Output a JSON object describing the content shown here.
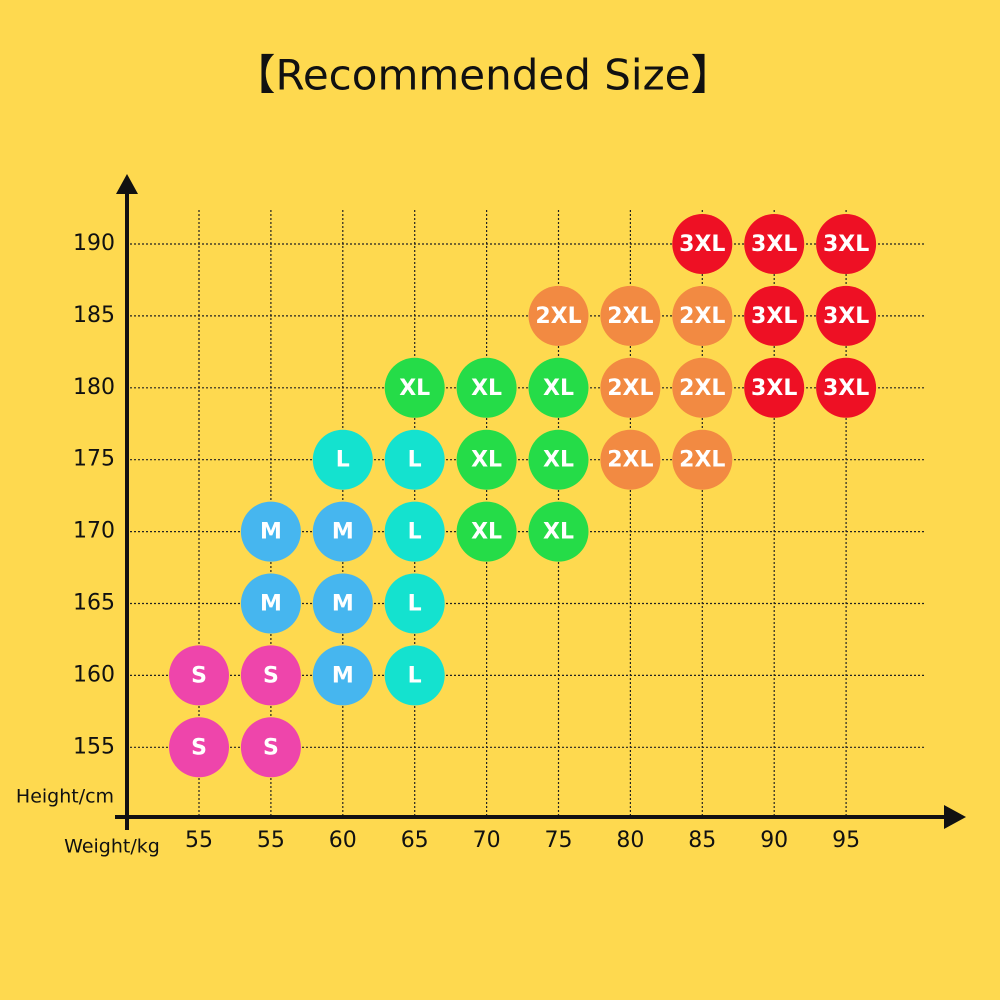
{
  "chart_data": {
    "type": "size-grid",
    "title": "【Recommended Size】",
    "x_label": "Weight/kg",
    "y_label": "Height/cm",
    "x_categories": [
      55,
      55,
      60,
      65,
      70,
      75,
      80,
      85,
      90,
      95
    ],
    "colors": {
      "S": "#ee45ab",
      "M": "#46b6ef",
      "L": "#14e2cf",
      "XL": "#25dc48",
      "2XL": "#f28a42",
      "3XL": "#ee1024"
    },
    "rows": [
      {
        "height": 190,
        "cells": [
          null,
          null,
          null,
          null,
          null,
          null,
          null,
          "3XL",
          "3XL",
          "3XL"
        ]
      },
      {
        "height": 185,
        "cells": [
          null,
          null,
          null,
          null,
          null,
          "2XL",
          "2XL",
          "2XL",
          "3XL",
          "3XL"
        ]
      },
      {
        "height": 180,
        "cells": [
          null,
          null,
          null,
          "XL",
          "XL",
          "XL",
          "2XL",
          "2XL",
          "3XL",
          "3XL"
        ]
      },
      {
        "height": 175,
        "cells": [
          null,
          null,
          "L",
          "L",
          "XL",
          "XL",
          "2XL",
          "2XL",
          null,
          null
        ]
      },
      {
        "height": 170,
        "cells": [
          null,
          "M",
          "M",
          "L",
          "XL",
          "XL",
          null,
          null,
          null,
          null
        ]
      },
      {
        "height": 165,
        "cells": [
          null,
          "M",
          "M",
          "L",
          null,
          null,
          null,
          null,
          null,
          null
        ]
      },
      {
        "height": 160,
        "cells": [
          "S",
          "S",
          "M",
          "L",
          null,
          null,
          null,
          null,
          null,
          null
        ]
      },
      {
        "height": 155,
        "cells": [
          "S",
          "S",
          null,
          null,
          null,
          null,
          null,
          null,
          null,
          null
        ]
      }
    ]
  }
}
